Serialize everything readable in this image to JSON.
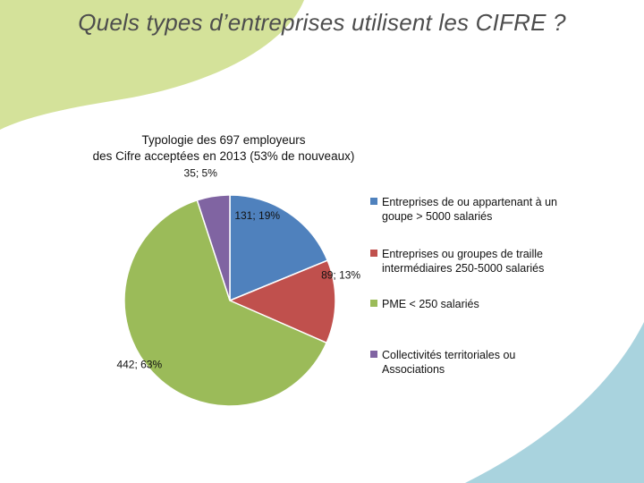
{
  "slide": {
    "title": "Quels types d’entreprises utilisent les CIFRE ?"
  },
  "colors": {
    "decor_green": "#d4e29a",
    "decor_blue": "#a9d3de",
    "text": "#111111"
  },
  "chart_data": {
    "type": "pie",
    "title_line1": "Typologie des 697 employeurs",
    "title_line2": "des Cifre acceptées en 2013 (53% de nouveaux)",
    "total": 697,
    "slices": [
      {
        "name": "Entreprises de ou appartenant à un goupe > 5000 salariés",
        "value": 131,
        "percent": 19,
        "label": "131; 19%",
        "color": "#4f81bd"
      },
      {
        "name": "Entreprises ou groupes de traille intermédiaires 250-5000 salariés",
        "value": 89,
        "percent": 13,
        "label": "89; 13%",
        "color": "#c0504d"
      },
      {
        "name": "PME < 250 salariés",
        "value": 442,
        "percent": 63,
        "label": "442; 63%",
        "color": "#9bbb59"
      },
      {
        "name": "Collectivités territoriales ou Associations",
        "value": 35,
        "percent": 5,
        "label": "35; 5%",
        "color": "#8064a2"
      }
    ],
    "legend_position": "right"
  }
}
